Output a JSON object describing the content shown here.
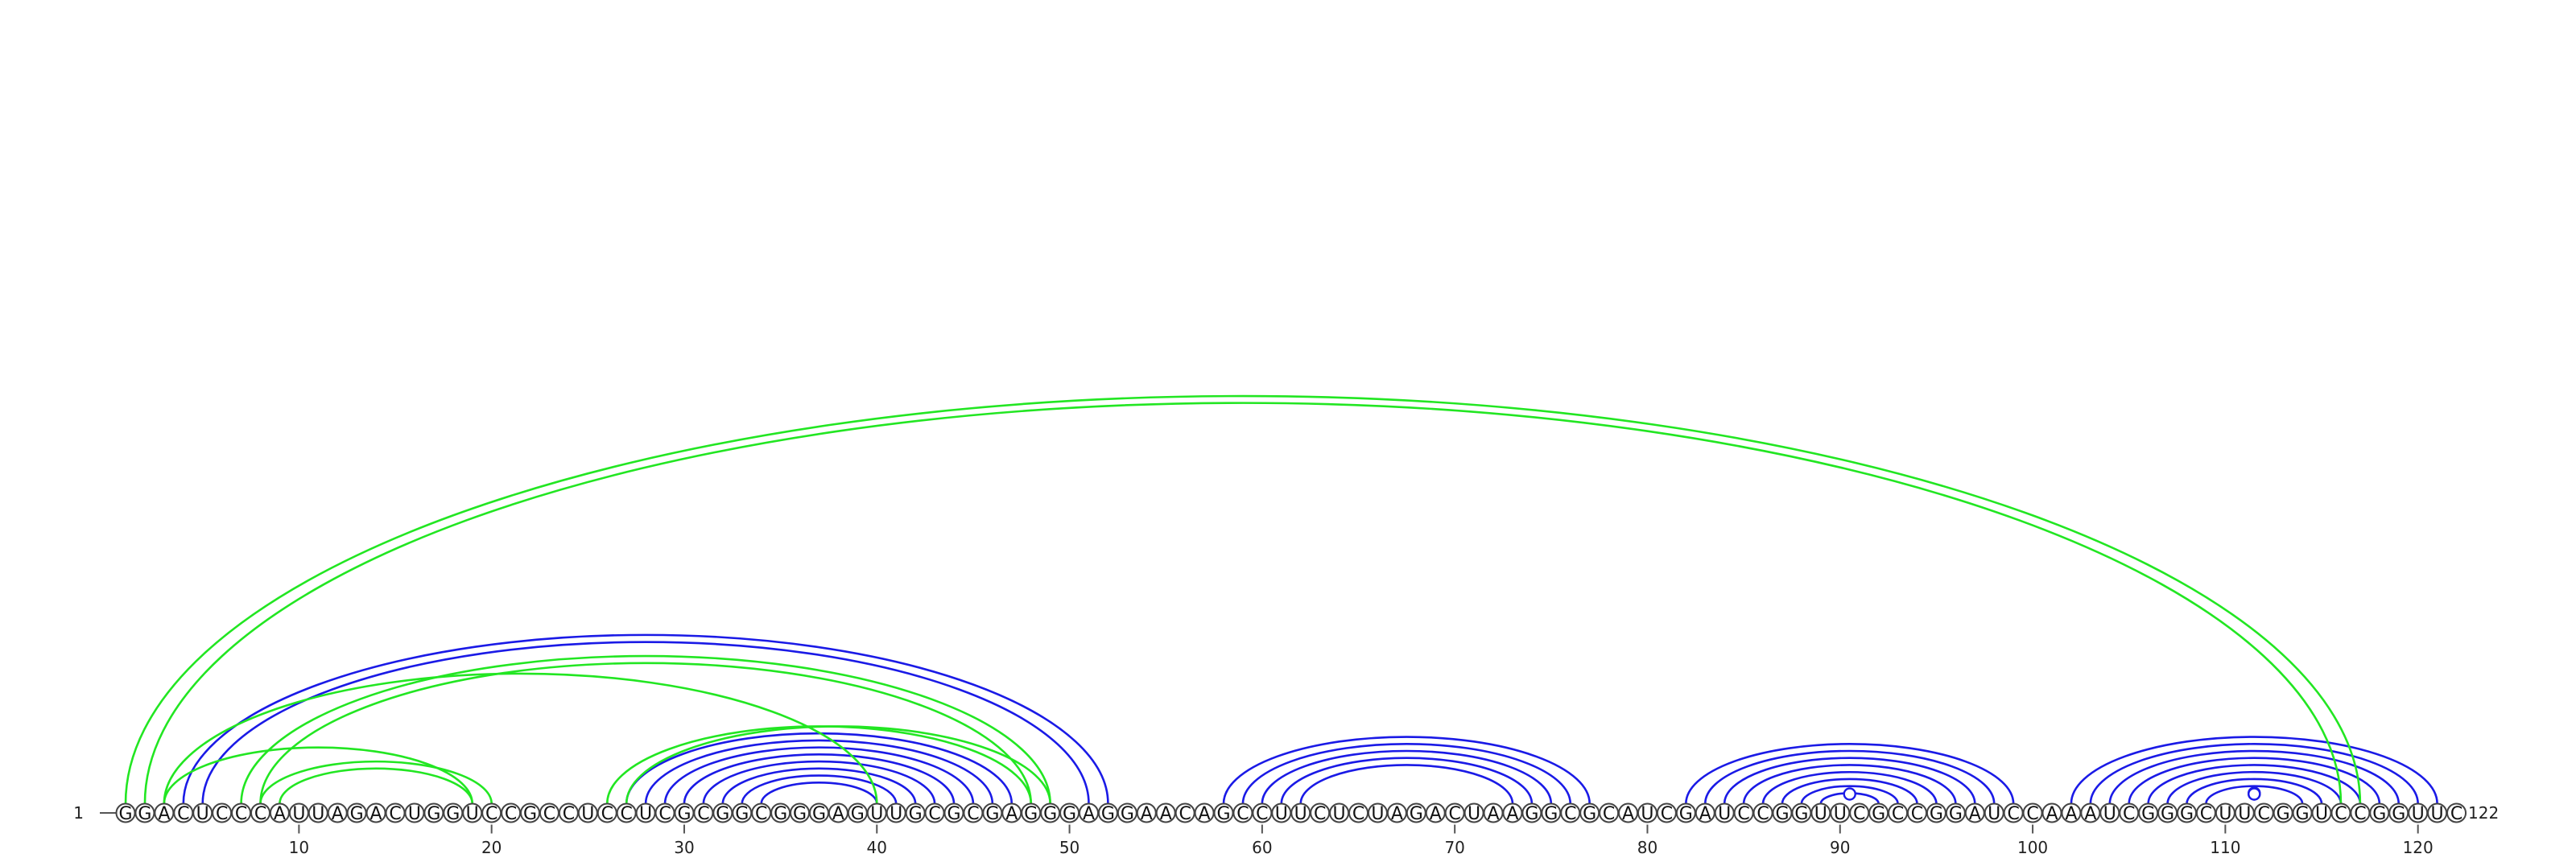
{
  "sequence": "GGACUCCCAUUAGACUGGUCCGCCUCCUCGCGGCGGGAGUUGCGCGAGGGAGGAACAGCCUUCUCUAGACUAAGGCGCAUCGAUCCGGUUCGCCGGAUCCAAAUCGGGCUUCGGUCCGGUUC",
  "start_label": "1",
  "end_label": "122",
  "position_ticks": [
    10,
    20,
    30,
    40,
    50,
    60,
    70,
    80,
    90,
    100,
    110,
    120
  ],
  "colors": {
    "structure_a": "#1a1ae6",
    "structure_b": "#22e622"
  },
  "chart_data": {
    "type": "arc",
    "length": 122,
    "series": [
      {
        "color": "#1a1ae6",
        "pairs": [
          [
            4,
            52
          ],
          [
            5,
            51
          ],
          [
            27,
            47
          ],
          [
            28,
            46
          ],
          [
            29,
            45
          ],
          [
            30,
            44
          ],
          [
            31,
            43
          ],
          [
            32,
            42
          ],
          [
            33,
            41
          ],
          [
            34,
            40
          ],
          [
            58,
            77
          ],
          [
            59,
            76
          ],
          [
            60,
            75
          ],
          [
            61,
            74
          ],
          [
            62,
            73
          ],
          [
            82,
            99
          ],
          [
            83,
            98
          ],
          [
            84,
            97
          ],
          [
            85,
            96
          ],
          [
            86,
            95
          ],
          [
            87,
            94
          ],
          [
            88,
            93
          ],
          [
            89,
            92
          ],
          [
            102,
            121
          ],
          [
            103,
            120
          ],
          [
            104,
            119
          ],
          [
            105,
            118
          ],
          [
            106,
            117
          ],
          [
            107,
            116
          ],
          [
            108,
            115
          ],
          [
            109,
            114
          ]
        ],
        "markers": [
          [
            90,
            91
          ],
          [
            110,
            113
          ],
          [
            111,
            112
          ],
          [
            110.5,
            112.5
          ]
        ]
      },
      {
        "color": "#22e622",
        "pairs": [
          [
            1,
            117
          ],
          [
            2,
            116
          ],
          [
            7,
            49
          ],
          [
            8,
            48
          ],
          [
            3,
            40
          ],
          [
            8,
            20
          ],
          [
            9,
            19
          ],
          [
            3,
            19
          ],
          [
            26,
            48
          ],
          [
            27,
            49
          ]
        ],
        "markers": []
      }
    ]
  }
}
